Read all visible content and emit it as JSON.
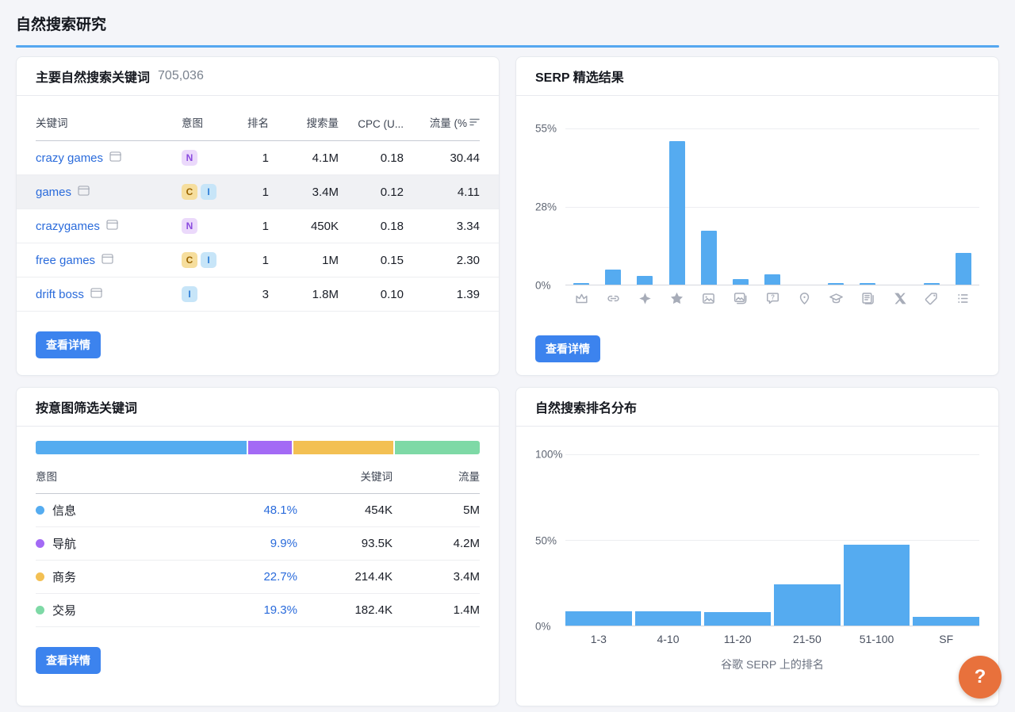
{
  "page": {
    "title": "自然搜索研究"
  },
  "panels": {
    "keywords": {
      "title": "主要自然搜索关键词",
      "total": "705,036",
      "columns": {
        "keyword": "关键词",
        "intent": "意图",
        "rank": "排名",
        "volume": "搜索量",
        "cpc": "CPC (U...",
        "traffic": "流量 (%"
      },
      "rows": [
        {
          "keyword": "crazy games",
          "intents": [
            "N"
          ],
          "rank": "1",
          "volume": "4.1M",
          "cpc": "0.18",
          "traffic": "30.44",
          "selected": false
        },
        {
          "keyword": "games",
          "intents": [
            "C",
            "I"
          ],
          "rank": "1",
          "volume": "3.4M",
          "cpc": "0.12",
          "traffic": "4.11",
          "selected": true
        },
        {
          "keyword": "crazygames",
          "intents": [
            "N"
          ],
          "rank": "1",
          "volume": "450K",
          "cpc": "0.18",
          "traffic": "3.34",
          "selected": false
        },
        {
          "keyword": "free games",
          "intents": [
            "C",
            "I"
          ],
          "rank": "1",
          "volume": "1M",
          "cpc": "0.15",
          "traffic": "2.30",
          "selected": false
        },
        {
          "keyword": "drift boss",
          "intents": [
            "I"
          ],
          "rank": "3",
          "volume": "1.8M",
          "cpc": "0.10",
          "traffic": "1.39",
          "selected": false
        }
      ],
      "view_details": "查看详情"
    },
    "serp_features": {
      "title": "SERP 精选结果",
      "view_details": "查看详情",
      "chart_data": {
        "type": "bar",
        "ylim": [
          0,
          55
        ],
        "yticks": [
          "55%",
          "28%",
          "0%"
        ],
        "grid": true,
        "categories": [
          "featured-snippet",
          "sitelinks",
          "instant-answer",
          "reviews",
          "image",
          "image-pack",
          "people-also-ask",
          "local-pack",
          "knowledge-panel",
          "top-stories",
          "x-posts",
          "product-tag",
          "list"
        ],
        "values": [
          0.7,
          5.3,
          3,
          50.5,
          19,
          2,
          3.5,
          0,
          0.7,
          0.7,
          0,
          0.7,
          11.3
        ],
        "bar_color": "#55ABF0"
      }
    },
    "intent": {
      "title": "按意图筛选关键词",
      "columns": {
        "intent": "意图",
        "keywords": "关键词",
        "traffic": "流量"
      },
      "rows": [
        {
          "label": "信息",
          "color": "#55ACF0",
          "percent": "48.1%",
          "keywords": "454K",
          "traffic": "5M"
        },
        {
          "label": "导航",
          "color": "#A36AF5",
          "percent": "9.9%",
          "keywords": "93.5K",
          "traffic": "4.2M"
        },
        {
          "label": "商务",
          "color": "#F3C053",
          "percent": "22.7%",
          "keywords": "214.4K",
          "traffic": "3.4M"
        },
        {
          "label": "交易",
          "color": "#7ED9A6",
          "percent": "19.3%",
          "keywords": "182.4K",
          "traffic": "1.4M"
        }
      ],
      "view_details": "查看详情",
      "chart_data": {
        "type": "bar",
        "stacked": true,
        "series": [
          {
            "name": "信息",
            "value": 48.1,
            "color": "#55ACF0"
          },
          {
            "name": "导航",
            "value": 9.9,
            "color": "#A36AF5"
          },
          {
            "name": "商务",
            "value": 22.7,
            "color": "#F3C053"
          },
          {
            "name": "交易",
            "value": 19.3,
            "color": "#7ED9A6"
          }
        ]
      }
    },
    "positions": {
      "title": "自然搜索排名分布",
      "chart_data": {
        "type": "bar",
        "ylim": [
          0,
          100
        ],
        "yticks": [
          "100%",
          "50%",
          "0%"
        ],
        "grid": true,
        "categories": [
          "1-3",
          "4-10",
          "11-20",
          "21-50",
          "51-100",
          "SF"
        ],
        "values": [
          8.5,
          8.5,
          8,
          24,
          47,
          5
        ],
        "xlabel": "谷歌 SERP 上的排名",
        "bar_color": "#55ABF0"
      }
    }
  },
  "badge_styles": {
    "N": {
      "bg": "#EBD9FB",
      "fg": "#8A4BDF"
    },
    "C": {
      "bg": "#F6DE9D",
      "fg": "#9C6500"
    },
    "I": {
      "bg": "#C7E5F8",
      "fg": "#2C7CD6"
    }
  },
  "help_button": {
    "label": "?"
  }
}
